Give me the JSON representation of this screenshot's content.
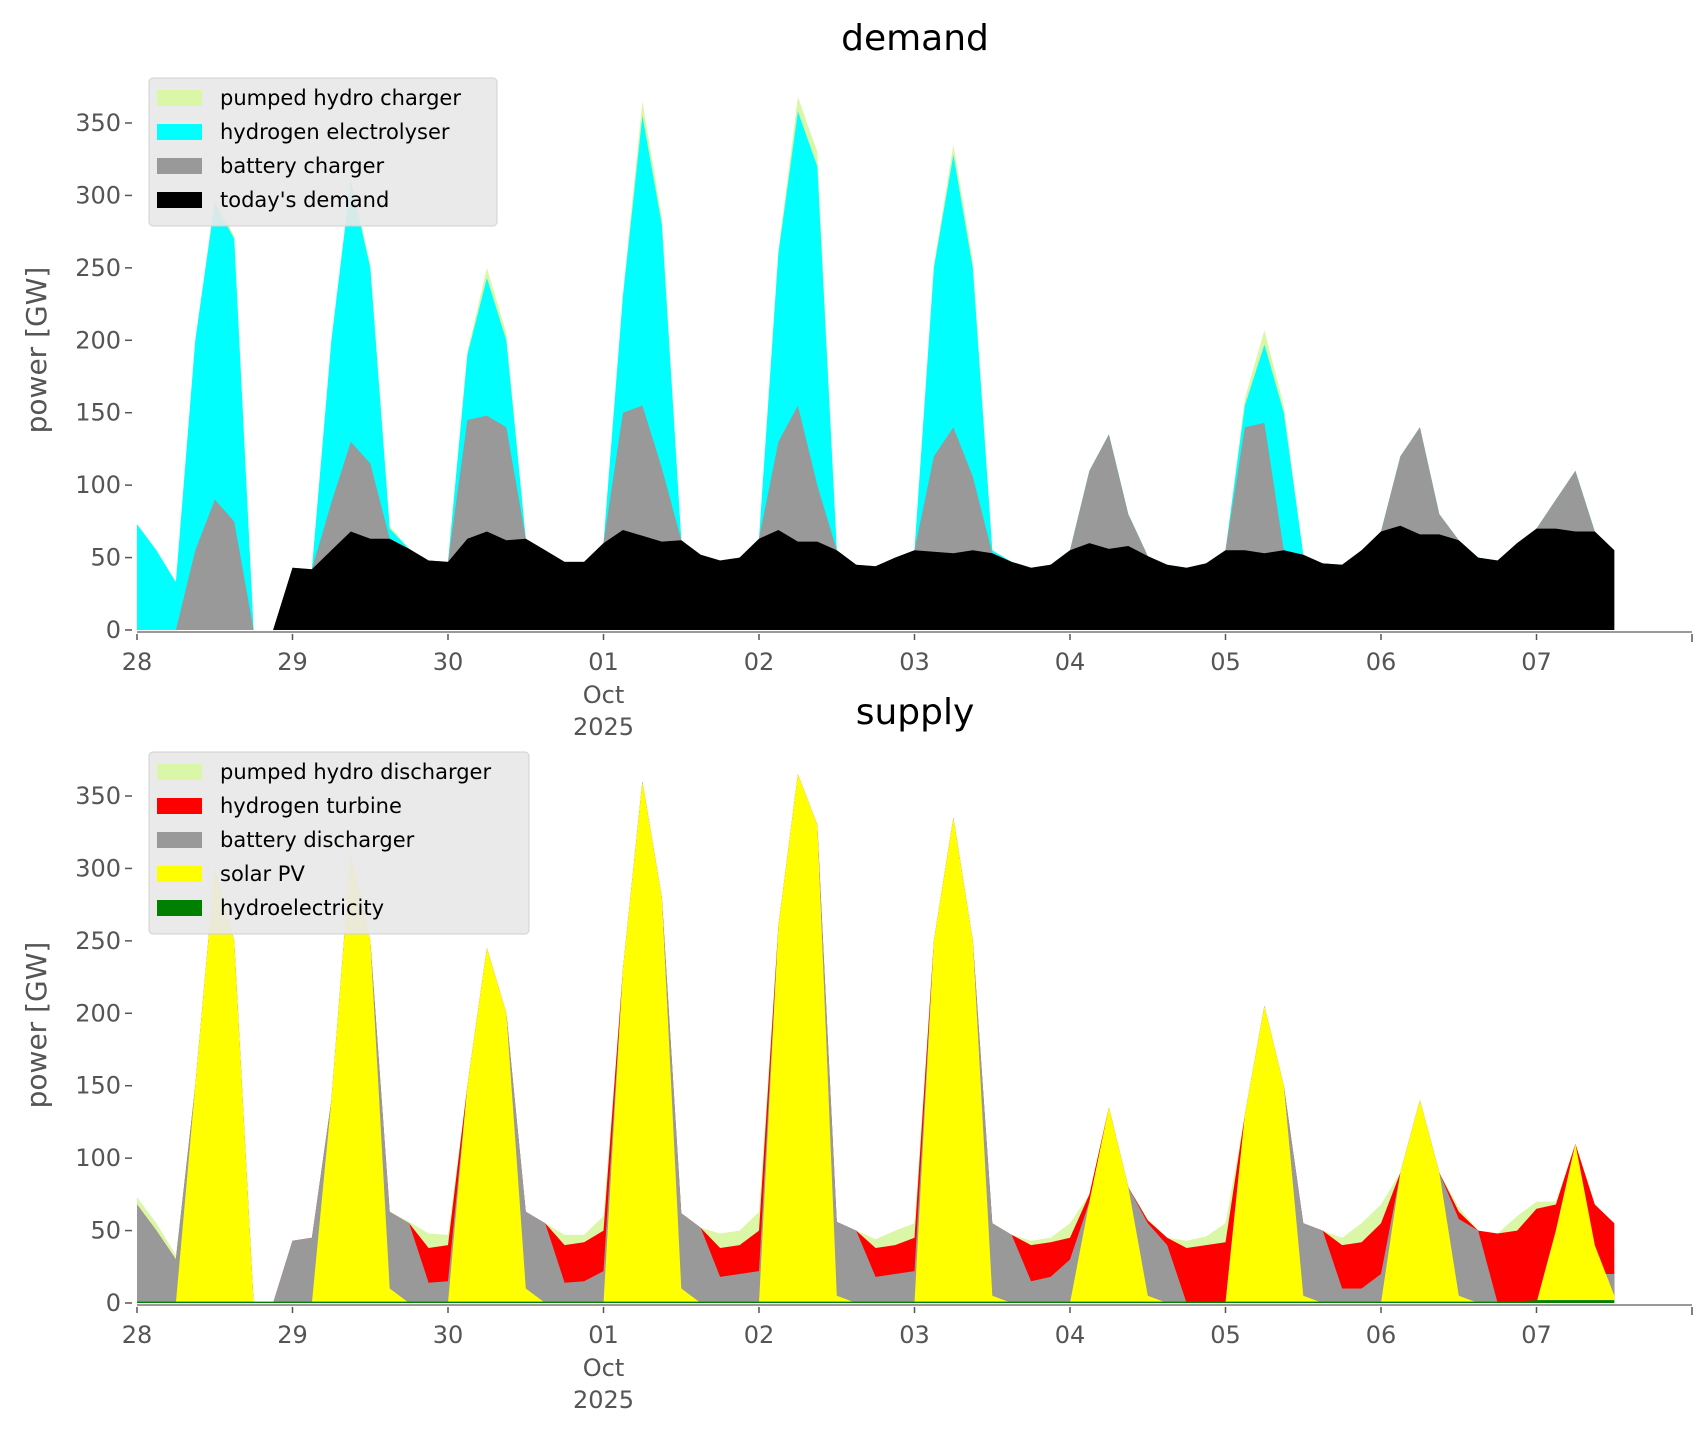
{
  "chart_data": [
    {
      "type": "area",
      "stacked": true,
      "title": "demand",
      "xlabel": "",
      "ylabel": "power [GW]",
      "ylim": [
        0,
        375
      ],
      "yticks": [
        0,
        50,
        100,
        150,
        200,
        250,
        300,
        350
      ],
      "xticks": [
        "28",
        "29",
        "30",
        "01",
        "02",
        "03",
        "04",
        "05",
        "06",
        "07"
      ],
      "xtick_sublabel": [
        "Oct",
        "2025"
      ],
      "x_step_hours": 3,
      "x_start": "2025-09-28 00:00",
      "legend_position": "top-left",
      "series": [
        {
          "name": "today's demand",
          "color": "#000000",
          "cumulative": [
            0,
            0,
            0,
            0,
            0,
            0,
            0,
            0,
            43,
            42,
            55,
            68,
            63,
            63,
            56,
            48,
            47,
            63,
            68,
            62,
            63,
            55,
            47,
            47,
            60,
            69,
            65,
            61,
            62,
            52,
            48,
            50,
            63,
            69,
            61,
            61,
            55,
            45,
            44,
            50,
            55,
            54,
            53,
            55,
            53,
            47,
            43,
            45,
            55,
            60,
            56,
            58,
            51,
            45,
            43,
            46,
            55,
            55,
            53,
            55,
            52,
            46,
            45,
            55,
            68,
            72,
            66,
            66,
            62,
            50,
            48,
            60,
            70,
            70,
            68,
            68,
            55
          ]
        },
        {
          "name": "battery charger",
          "color": "#999999",
          "cumulative": [
            0,
            0,
            0,
            55,
            90,
            75,
            0,
            0,
            43,
            42,
            88,
            130,
            115,
            63,
            56,
            48,
            47,
            145,
            148,
            140,
            63,
            55,
            47,
            47,
            60,
            150,
            155,
            112,
            62,
            52,
            48,
            50,
            63,
            130,
            155,
            100,
            55,
            45,
            44,
            50,
            55,
            120,
            140,
            106,
            53,
            47,
            43,
            45,
            55,
            110,
            135,
            80,
            51,
            45,
            43,
            46,
            55,
            140,
            143,
            55,
            52,
            46,
            45,
            55,
            68,
            120,
            140,
            80,
            62,
            50,
            48,
            60,
            70,
            90,
            110,
            68,
            55
          ]
        },
        {
          "name": "hydrogen electrolyser",
          "color": "#00ffff",
          "cumulative": [
            73,
            55,
            33,
            200,
            295,
            270,
            0,
            0,
            43,
            42,
            200,
            310,
            250,
            70,
            56,
            48,
            47,
            190,
            243,
            200,
            63,
            55,
            47,
            47,
            60,
            230,
            355,
            280,
            62,
            52,
            48,
            50,
            63,
            260,
            358,
            320,
            55,
            45,
            44,
            50,
            55,
            250,
            328,
            250,
            55,
            47,
            43,
            45,
            55,
            110,
            135,
            80,
            51,
            45,
            43,
            46,
            55,
            155,
            197,
            150,
            52,
            46,
            45,
            55,
            68,
            120,
            140,
            80,
            62,
            50,
            48,
            60,
            70,
            90,
            110,
            68,
            55
          ]
        },
        {
          "name": "pumped hydro charger",
          "color": "#d9f7a6",
          "cumulative": [
            73,
            55,
            33,
            200,
            298,
            272,
            0,
            0,
            43,
            42,
            200,
            312,
            252,
            72,
            56,
            48,
            47,
            192,
            250,
            205,
            63,
            55,
            47,
            47,
            60,
            232,
            365,
            285,
            62,
            52,
            48,
            50,
            63,
            262,
            368,
            330,
            55,
            45,
            44,
            50,
            55,
            252,
            335,
            255,
            55,
            47,
            43,
            45,
            55,
            110,
            135,
            80,
            51,
            45,
            43,
            46,
            55,
            160,
            207,
            155,
            52,
            46,
            45,
            55,
            68,
            120,
            140,
            80,
            62,
            50,
            48,
            60,
            70,
            90,
            110,
            68,
            55
          ]
        }
      ]
    },
    {
      "type": "area",
      "stacked": true,
      "title": "supply",
      "xlabel": "",
      "ylabel": "power [GW]",
      "ylim": [
        0,
        375
      ],
      "yticks": [
        0,
        50,
        100,
        150,
        200,
        250,
        300,
        350
      ],
      "xticks": [
        "28",
        "29",
        "30",
        "01",
        "02",
        "03",
        "04",
        "05",
        "06",
        "07"
      ],
      "xtick_sublabel": [
        "Oct",
        "2025"
      ],
      "x_step_hours": 3,
      "x_start": "2025-09-28 00:00",
      "legend_position": "top-left",
      "series": [
        {
          "name": "hydroelectricity",
          "color": "#008000",
          "cumulative": [
            1,
            1,
            1,
            1,
            1,
            1,
            1,
            1,
            1,
            1,
            1,
            1,
            1,
            1,
            1,
            1,
            1,
            1,
            1,
            1,
            1,
            1,
            1,
            1,
            1,
            1,
            1,
            1,
            1,
            1,
            1,
            1,
            1,
            1,
            1,
            1,
            1,
            1,
            1,
            1,
            1,
            1,
            1,
            1,
            1,
            1,
            1,
            1,
            1,
            1,
            1,
            1,
            1,
            1,
            1,
            1,
            1,
            1,
            1,
            1,
            1,
            1,
            1,
            1,
            1,
            1,
            1,
            1,
            1,
            1,
            1,
            1,
            2,
            2,
            2,
            2,
            2
          ]
        },
        {
          "name": "solar PV",
          "color": "#ffff00",
          "cumulative": [
            0,
            0,
            0,
            150,
            300,
            250,
            0,
            0,
            0,
            0,
            140,
            310,
            250,
            10,
            0,
            0,
            0,
            150,
            245,
            200,
            10,
            0,
            0,
            0,
            0,
            230,
            360,
            280,
            10,
            0,
            0,
            0,
            0,
            260,
            365,
            330,
            5,
            0,
            0,
            0,
            0,
            250,
            335,
            250,
            5,
            0,
            0,
            0,
            0,
            70,
            135,
            80,
            5,
            0,
            0,
            0,
            0,
            130,
            205,
            150,
            5,
            0,
            0,
            0,
            0,
            90,
            140,
            90,
            5,
            0,
            0,
            0,
            0,
            50,
            110,
            40,
            5
          ]
        },
        {
          "name": "battery discharger",
          "color": "#999999",
          "cumulative": [
            68,
            50,
            30,
            150,
            300,
            250,
            0,
            0,
            43,
            45,
            140,
            310,
            250,
            63,
            55,
            14,
            15,
            150,
            245,
            200,
            63,
            55,
            14,
            15,
            22,
            230,
            360,
            280,
            62,
            52,
            18,
            20,
            22,
            260,
            365,
            330,
            56,
            50,
            18,
            20,
            22,
            250,
            335,
            250,
            55,
            47,
            15,
            18,
            30,
            70,
            135,
            80,
            55,
            40,
            0,
            0,
            0,
            130,
            205,
            150,
            55,
            50,
            10,
            10,
            20,
            90,
            140,
            90,
            58,
            50,
            0,
            0,
            0,
            50,
            110,
            20,
            20
          ]
        },
        {
          "name": "hydrogen turbine",
          "color": "#ff0000",
          "cumulative": [
            68,
            50,
            30,
            150,
            300,
            250,
            0,
            0,
            43,
            45,
            140,
            310,
            250,
            63,
            55,
            38,
            40,
            150,
            245,
            200,
            63,
            55,
            40,
            42,
            50,
            230,
            360,
            280,
            62,
            52,
            38,
            40,
            50,
            260,
            365,
            330,
            56,
            50,
            38,
            40,
            45,
            250,
            335,
            250,
            55,
            47,
            40,
            42,
            45,
            75,
            135,
            80,
            57,
            45,
            38,
            40,
            42,
            130,
            205,
            150,
            55,
            50,
            40,
            42,
            55,
            90,
            140,
            90,
            63,
            50,
            48,
            50,
            65,
            68,
            110,
            68,
            55
          ]
        },
        {
          "name": "pumped hydro discharger",
          "color": "#d9f7a6",
          "cumulative": [
            73,
            55,
            33,
            150,
            300,
            250,
            0,
            0,
            43,
            45,
            140,
            310,
            250,
            63,
            56,
            48,
            47,
            150,
            245,
            200,
            63,
            55,
            47,
            47,
            60,
            230,
            360,
            280,
            62,
            52,
            48,
            50,
            63,
            260,
            365,
            330,
            56,
            50,
            44,
            50,
            55,
            250,
            335,
            250,
            55,
            47,
            43,
            45,
            55,
            75,
            135,
            80,
            58,
            45,
            43,
            46,
            55,
            130,
            205,
            150,
            55,
            50,
            45,
            55,
            68,
            90,
            140,
            90,
            66,
            50,
            48,
            60,
            70,
            70,
            110,
            68,
            55
          ]
        }
      ]
    }
  ]
}
